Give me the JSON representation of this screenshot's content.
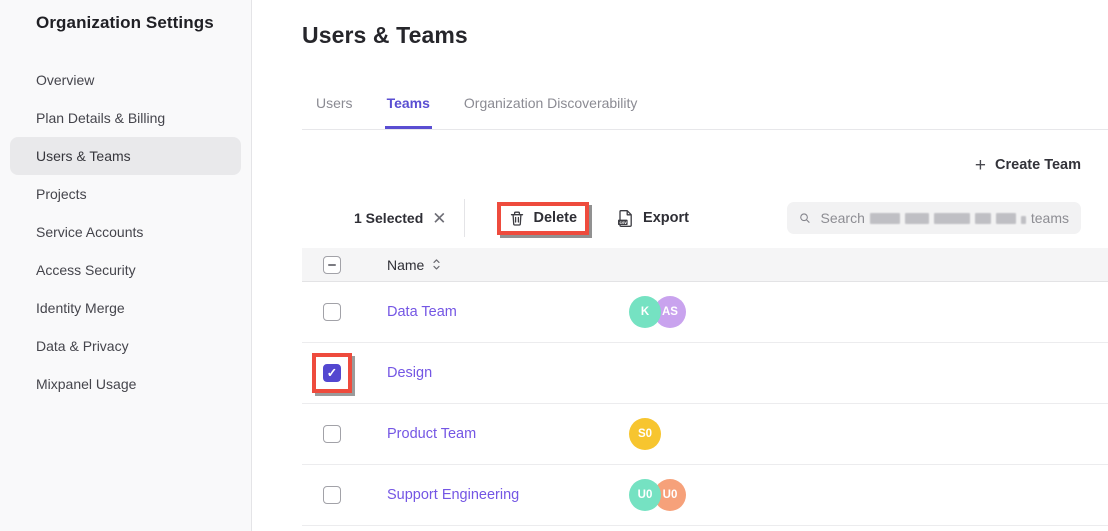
{
  "sidebar": {
    "title": "Organization Settings",
    "items": [
      {
        "label": "Overview",
        "active": false
      },
      {
        "label": "Plan Details & Billing",
        "active": false
      },
      {
        "label": "Users & Teams",
        "active": true
      },
      {
        "label": "Projects",
        "active": false
      },
      {
        "label": "Service Accounts",
        "active": false
      },
      {
        "label": "Access Security",
        "active": false
      },
      {
        "label": "Identity Merge",
        "active": false
      },
      {
        "label": "Data & Privacy",
        "active": false
      },
      {
        "label": "Mixpanel Usage",
        "active": false
      }
    ]
  },
  "main": {
    "title": "Users & Teams",
    "tabs": [
      {
        "label": "Users",
        "active": false
      },
      {
        "label": "Teams",
        "active": true
      },
      {
        "label": "Organization Discoverability",
        "active": false
      }
    ],
    "create_team_label": "Create Team",
    "toolbar": {
      "selected_count": "1 Selected",
      "delete_label": "Delete",
      "export_label": "Export",
      "search_prefix": "Search",
      "search_suffix": "teams",
      "search_middle_redacted": true
    },
    "table": {
      "select_all_state": "indeterminate",
      "columns": [
        {
          "label": "Name",
          "sortable": true
        }
      ],
      "rows": [
        {
          "name": "Data Team",
          "checked": false,
          "annotated": false,
          "avatars": [
            {
              "initials": "K",
              "color": "#75e2c2"
            },
            {
              "initials": "AS",
              "color": "#c9a3ee"
            }
          ]
        },
        {
          "name": "Design",
          "checked": true,
          "annotated": true,
          "avatars": []
        },
        {
          "name": "Product Team",
          "checked": false,
          "annotated": false,
          "avatars": [
            {
              "initials": "S0",
              "color": "#f7c52f"
            }
          ]
        },
        {
          "name": "Support Engineering",
          "checked": false,
          "annotated": false,
          "avatars": [
            {
              "initials": "U0",
              "color": "#75e2c2"
            },
            {
              "initials": "U0",
              "color": "#f6a17a"
            }
          ]
        }
      ]
    }
  },
  "colors": {
    "accent_purple": "#5a4ed2",
    "link_purple": "#7456e4",
    "checkbox_checked": "#5347d0",
    "annotation_red": "#ee4b3d",
    "sidebar_bg": "#f9f9fa",
    "table_header_bg": "#f5f5f6"
  }
}
